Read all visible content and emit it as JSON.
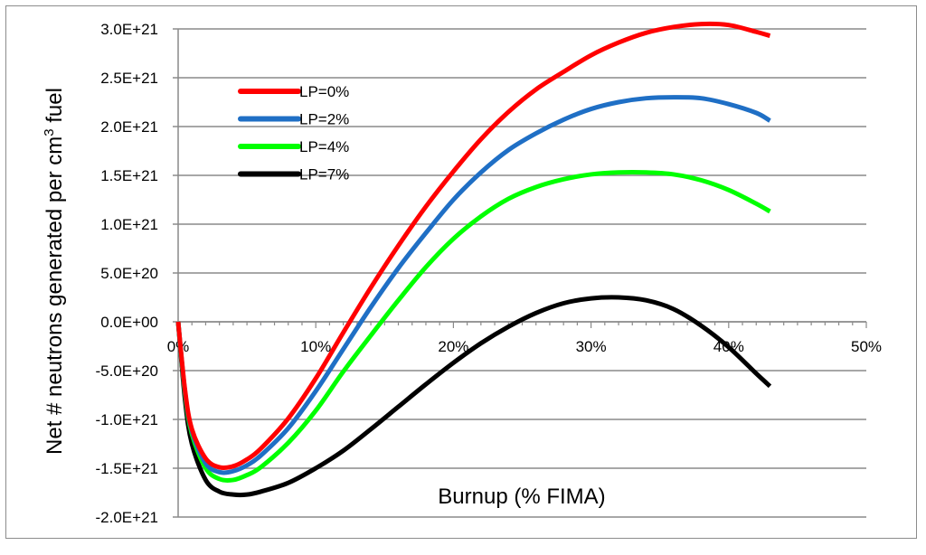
{
  "chart_data": {
    "type": "line",
    "title": "",
    "xlabel": "Burnup (% FIMA)",
    "ylabel_parts": {
      "prefix": "Net # neutrons generated per cm",
      "superscript": "3",
      "suffix": " fuel"
    },
    "xlim": [
      0,
      0.5
    ],
    "ylim": [
      -2e+21,
      3e+21
    ],
    "x_ticks": [
      {
        "value": 0.0,
        "label": "0%"
      },
      {
        "value": 0.1,
        "label": "10%"
      },
      {
        "value": 0.2,
        "label": "20%"
      },
      {
        "value": 0.3,
        "label": "30%"
      },
      {
        "value": 0.4,
        "label": "40%"
      },
      {
        "value": 0.5,
        "label": "50%"
      }
    ],
    "y_ticks": [
      {
        "value": 3e+21,
        "label": "3.0E+21"
      },
      {
        "value": 2.5e+21,
        "label": "2.5E+21"
      },
      {
        "value": 2e+21,
        "label": "2.0E+21"
      },
      {
        "value": 1.5e+21,
        "label": "1.5E+21"
      },
      {
        "value": 1e+21,
        "label": "1.0E+21"
      },
      {
        "value": 5e+20,
        "label": "5.0E+20"
      },
      {
        "value": 0.0,
        "label": "0.0E+00"
      },
      {
        "value": -5e+20,
        "label": "-5.0E+20"
      },
      {
        "value": -1e+21,
        "label": "-1.0E+21"
      },
      {
        "value": -1.5e+21,
        "label": "-1.5E+21"
      },
      {
        "value": -2e+21,
        "label": "-2.0E+21"
      }
    ],
    "grid": "horizontal",
    "legend_position": "top-left",
    "series": [
      {
        "name": "LP=0%",
        "color": "#ff0000",
        "x": [
          0.0,
          0.005,
          0.01,
          0.02,
          0.03,
          0.04,
          0.05,
          0.06,
          0.08,
          0.1,
          0.12,
          0.14,
          0.16,
          0.18,
          0.2,
          0.22,
          0.24,
          0.26,
          0.28,
          0.3,
          0.32,
          0.34,
          0.36,
          0.38,
          0.4,
          0.42,
          0.43
        ],
        "y": [
          0.0,
          -7e+20,
          -1.1e+21,
          -1.4e+21,
          -1.49e+21,
          -1.48e+21,
          -1.41e+21,
          -1.3e+21,
          -9.9e+20,
          -5.8e+20,
          -1.1e+20,
          3.5e+20,
          7.8e+20,
          1.18e+21,
          1.54e+21,
          1.87e+21,
          2.15e+21,
          2.38e+21,
          2.56e+21,
          2.73e+21,
          2.86e+21,
          2.96e+21,
          3.02e+21,
          3.05e+21,
          3.04e+21,
          2.97e+21,
          2.93e+21
        ]
      },
      {
        "name": "LP=2%",
        "color": "#1f6fc5",
        "x": [
          0.0,
          0.005,
          0.01,
          0.02,
          0.03,
          0.04,
          0.05,
          0.06,
          0.08,
          0.1,
          0.12,
          0.14,
          0.16,
          0.18,
          0.2,
          0.22,
          0.24,
          0.26,
          0.28,
          0.3,
          0.32,
          0.34,
          0.36,
          0.38,
          0.4,
          0.42,
          0.43
        ],
        "y": [
          0.0,
          -7.2e+20,
          -1.12e+21,
          -1.45e+21,
          -1.54e+21,
          -1.53e+21,
          -1.47e+21,
          -1.37e+21,
          -1.09e+21,
          -7.1e+20,
          -2.8e+20,
          1.5e+20,
          5.5e+20,
          9.1e+20,
          1.25e+21,
          1.53e+21,
          1.76e+21,
          1.93e+21,
          2.07e+21,
          2.18e+21,
          2.25e+21,
          2.29e+21,
          2.3e+21,
          2.29e+21,
          2.23e+21,
          2.14e+21,
          2.06e+21
        ]
      },
      {
        "name": "LP=4%",
        "color": "#00ff00",
        "x": [
          0.0,
          0.005,
          0.01,
          0.02,
          0.03,
          0.04,
          0.05,
          0.06,
          0.08,
          0.1,
          0.12,
          0.14,
          0.16,
          0.18,
          0.2,
          0.22,
          0.24,
          0.26,
          0.28,
          0.3,
          0.32,
          0.34,
          0.36,
          0.38,
          0.4,
          0.42,
          0.43
        ],
        "y": [
          0.0,
          -7.4e+20,
          -1.15e+21,
          -1.5e+21,
          -1.61e+21,
          -1.62e+21,
          -1.57e+21,
          -1.49e+21,
          -1.24e+21,
          -9.1e+20,
          -5.1e+20,
          -1.4e+20,
          2.2e+20,
          5.6e+20,
          8.5e+20,
          1.08e+21,
          1.26e+21,
          1.38e+21,
          1.46e+21,
          1.51e+21,
          1.53e+21,
          1.53e+21,
          1.51e+21,
          1.45e+21,
          1.35e+21,
          1.21e+21,
          1.13e+21
        ]
      },
      {
        "name": "LP=7%",
        "color": "#000000",
        "x": [
          0.0,
          0.005,
          0.01,
          0.02,
          0.03,
          0.04,
          0.05,
          0.06,
          0.08,
          0.1,
          0.12,
          0.14,
          0.16,
          0.18,
          0.2,
          0.22,
          0.24,
          0.26,
          0.28,
          0.3,
          0.32,
          0.34,
          0.36,
          0.38,
          0.4,
          0.42,
          0.43
        ],
        "y": [
          0.0,
          -8e+20,
          -1.25e+21,
          -1.62e+21,
          -1.74e+21,
          -1.77e+21,
          -1.77e+21,
          -1.74e+21,
          -1.65e+21,
          -1.5e+21,
          -1.32e+21,
          -1.1e+21,
          -8.7e+20,
          -6.4e+20,
          -4.2e+20,
          -2.2e+20,
          -5e+19,
          9e+19,
          1.9e+20,
          2.4e+20,
          2.5e+20,
          2.2e+20,
          1.3e+20,
          -4e+19,
          -2.6e+20,
          -5.3e+20,
          -6.6e+20
        ]
      }
    ]
  }
}
